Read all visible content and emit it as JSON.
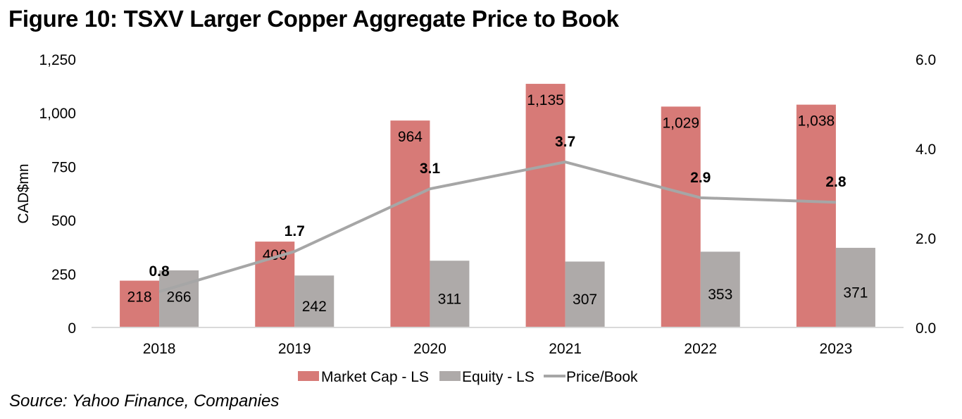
{
  "title": "Figure 10: TSXV Larger Copper Aggregate Price to Book",
  "source": "Source: Yahoo Finance, Companies",
  "colors": {
    "market_cap": "#d77a77",
    "equity": "#aeaaa9",
    "price_book": "#a6a6a6",
    "axis": "#d9d9d9",
    "text": "#000000"
  },
  "chart_data": {
    "type": "bar",
    "title": "Figure 10: TSXV Larger Copper Aggregate Price to Book",
    "categories": [
      "2018",
      "2019",
      "2020",
      "2021",
      "2022",
      "2023"
    ],
    "series": [
      {
        "name": "Market Cap - LS",
        "type": "bar",
        "axis": "left",
        "values": [
          218,
          400,
          964,
          1135,
          1029,
          1038
        ],
        "labels": [
          "218",
          "400",
          "964",
          "1,135",
          "1,029",
          "1,038"
        ]
      },
      {
        "name": "Equity - LS",
        "type": "bar",
        "axis": "left",
        "values": [
          266,
          242,
          311,
          307,
          353,
          371
        ],
        "labels": [
          "266",
          "242",
          "311",
          "307",
          "353",
          "371"
        ]
      },
      {
        "name": "Price/Book",
        "type": "line",
        "axis": "right",
        "values": [
          0.8,
          1.7,
          3.1,
          3.7,
          2.9,
          2.8
        ],
        "labels": [
          "0.8",
          "1.7",
          "3.1",
          "3.7",
          "2.9",
          "2.8"
        ]
      }
    ],
    "ylabel": "CAD$mn",
    "ylim": [
      0,
      1250
    ],
    "yticks": [
      "0",
      "250",
      "500",
      "750",
      "1,000",
      "1,250"
    ],
    "y2lim": [
      0,
      6
    ],
    "y2ticks": [
      "0.0",
      "2.0",
      "4.0",
      "6.0"
    ],
    "xlabel": "",
    "grid": false,
    "legend": {
      "position": "bottom",
      "entries": [
        "Market Cap - LS",
        "Equity - LS",
        "Price/Book"
      ]
    }
  }
}
